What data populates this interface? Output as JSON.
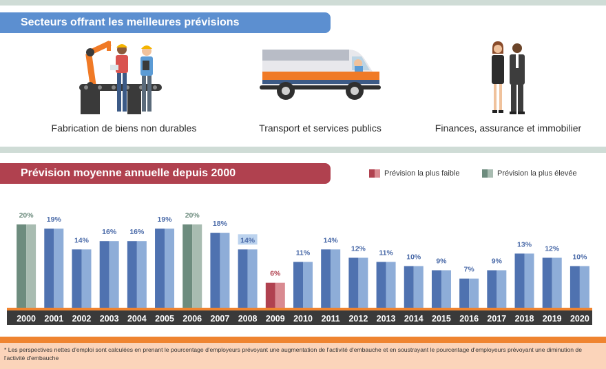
{
  "sectors_section": {
    "title": "Secteurs offrant les meilleures prévisions",
    "items": [
      {
        "label": "Fabrication de biens non durables",
        "icon": "factory-workers-icon"
      },
      {
        "label": "Transport et services publics",
        "icon": "delivery-van-icon"
      },
      {
        "label": "Finances, assurance et immobilier",
        "icon": "business-people-icon"
      }
    ]
  },
  "forecast_section": {
    "title": "Prévision moyenne annuelle depuis 2000",
    "legend": {
      "lowest": "Prévision la plus faible",
      "highest": "Prévision la plus élevée"
    }
  },
  "colors": {
    "blue_dark": "#4f72b0",
    "blue_light": "#8eadd8",
    "green_dark": "#6d8c7e",
    "green_light": "#a8bcb1",
    "red_dark": "#b0414f",
    "red_light": "#d98a91",
    "axis": "#3a3a3a",
    "orange": "#ef8430",
    "ribbon_blue": "#5c8fd0",
    "ribbon_red": "#b0414f"
  },
  "chart_data": {
    "type": "bar",
    "title": "Prévision moyenne annuelle depuis 2000",
    "categories": [
      "2000",
      "2001",
      "2002",
      "2003",
      "2004",
      "2005",
      "2006",
      "2007",
      "2008",
      "2009",
      "2010",
      "2011",
      "2012",
      "2013",
      "2014",
      "2015",
      "2016",
      "2017",
      "2018",
      "2019",
      "2020"
    ],
    "values": [
      20,
      19,
      14,
      16,
      16,
      19,
      20,
      18,
      14,
      6,
      11,
      14,
      12,
      11,
      10,
      9,
      7,
      9,
      13,
      12,
      10
    ],
    "value_labels": [
      "20%",
      "19%",
      "14%",
      "16%",
      "16%",
      "19%",
      "20%",
      "18%",
      "14%",
      "6%",
      "11%",
      "14%",
      "12%",
      "11%",
      "10%",
      "9%",
      "7%",
      "9%",
      "13%",
      "12%",
      "10%"
    ],
    "highest": [
      "2000",
      "2006"
    ],
    "lowest": [
      "2009"
    ],
    "highlighted_label": "2008",
    "ylim": [
      0,
      20
    ],
    "unit": "%"
  },
  "footnote": "* Les perspectives nettes d'emploi sont calculées en prenant le pourcentage d'employeurs prévoyant une augmentation de l'activité d'embauche et en soustrayant le pourcentage d'employeurs prévoyant une diminution de l'activité d'embauche"
}
